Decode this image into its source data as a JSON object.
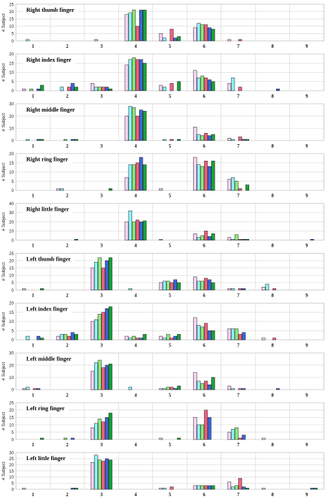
{
  "colors": [
    "#f6d2f2",
    "#8ef0f6",
    "#8ee87a",
    "#f0607f",
    "#3b66d6",
    "#16a233"
  ],
  "chart_data": [
    {
      "type": "bar",
      "title": "Right thumb finger",
      "ylabel": "# Subject",
      "categories": [
        "1",
        "2",
        "3",
        "4",
        "5",
        "6",
        "7",
        "8",
        "9"
      ],
      "ylim": [
        0,
        25
      ],
      "yticks": [
        0,
        5,
        10,
        15,
        20,
        25
      ],
      "values": [
        [
          0,
          1,
          0,
          0,
          0,
          0
        ],
        [
          0,
          0,
          0,
          0,
          0,
          0
        ],
        [
          0,
          1,
          0,
          0,
          0,
          0
        ],
        [
          18,
          19,
          21,
          10,
          21,
          21
        ],
        [
          5,
          2,
          0,
          8,
          2,
          3
        ],
        [
          9,
          12,
          11,
          11,
          9,
          8
        ],
        [
          1,
          0,
          0,
          1,
          0,
          0
        ],
        [
          0,
          0,
          0,
          0,
          0,
          0
        ],
        [
          0,
          0,
          0,
          0,
          0,
          0
        ]
      ]
    },
    {
      "type": "bar",
      "title": "Right index finger",
      "ylabel": "# Subject",
      "categories": [
        "1",
        "2",
        "3",
        "4",
        "5",
        "6",
        "7",
        "8",
        "9"
      ],
      "ylim": [
        0,
        20
      ],
      "yticks": [
        0,
        5,
        10,
        15,
        20
      ],
      "values": [
        [
          1,
          0,
          1,
          0,
          1,
          3
        ],
        [
          0,
          2,
          0,
          2,
          4,
          2
        ],
        [
          4,
          2,
          2,
          2,
          2,
          1
        ],
        [
          14,
          17,
          18,
          17,
          17,
          15
        ],
        [
          3,
          2,
          0,
          4,
          0,
          5
        ],
        [
          11,
          7,
          8,
          7,
          6,
          5
        ],
        [
          4,
          7,
          0,
          2,
          0,
          0
        ],
        [
          0,
          0,
          0,
          0,
          1,
          0
        ],
        [
          0,
          0,
          0,
          0,
          0,
          0
        ]
      ]
    },
    {
      "type": "bar",
      "title": "Right middle finger",
      "ylabel": "# Subject",
      "categories": [
        "1",
        "2",
        "3",
        "4",
        "5",
        "6",
        "7",
        "8",
        "9"
      ],
      "ylim": [
        0,
        30
      ],
      "yticks": [
        0,
        10,
        20,
        30
      ],
      "values": [
        [
          0,
          1,
          0,
          0,
          1,
          1
        ],
        [
          0,
          0,
          1,
          0,
          1,
          1
        ],
        [
          0,
          0,
          0,
          0,
          0,
          0
        ],
        [
          20,
          28,
          27,
          20,
          25,
          24
        ],
        [
          0,
          1,
          0,
          1,
          0,
          1
        ],
        [
          11,
          5,
          4,
          6,
          4,
          5
        ],
        [
          2,
          1,
          0,
          3,
          1,
          1
        ],
        [
          0,
          0,
          0,
          0,
          0,
          0
        ],
        [
          0,
          0,
          0,
          0,
          0,
          0
        ]
      ]
    },
    {
      "type": "bar",
      "title": "Right ring finger",
      "ylabel": "# Subject",
      "categories": [
        "1",
        "2",
        "3",
        "4",
        "5",
        "6",
        "7",
        "8",
        "9"
      ],
      "ylim": [
        0,
        20
      ],
      "yticks": [
        0,
        5,
        10,
        15,
        20
      ],
      "values": [
        [
          0,
          0,
          0,
          0,
          0,
          0
        ],
        [
          1,
          1,
          0,
          0,
          0,
          0
        ],
        [
          0,
          0,
          0,
          0,
          0,
          1
        ],
        [
          7,
          14,
          14,
          15,
          18,
          14
        ],
        [
          1,
          0,
          0,
          0,
          0,
          0
        ],
        [
          18,
          14,
          13,
          16,
          13,
          16
        ],
        [
          6,
          7,
          5,
          1,
          0,
          3
        ],
        [
          0,
          0,
          0,
          0,
          0,
          0
        ],
        [
          0,
          0,
          0,
          0,
          0,
          0
        ]
      ]
    },
    {
      "type": "bar",
      "title": "Right little finger",
      "ylabel": "# Subject",
      "categories": [
        "1",
        "2",
        "3",
        "4",
        "5",
        "6",
        "7",
        "8",
        "9"
      ],
      "ylim": [
        0,
        40
      ],
      "yticks": [
        0,
        10,
        20,
        30,
        40
      ],
      "values": [
        [
          0,
          0,
          0,
          0,
          0,
          0
        ],
        [
          0,
          0,
          0,
          0,
          0,
          1
        ],
        [
          0,
          0,
          0,
          0,
          0,
          0
        ],
        [
          20,
          32,
          20,
          22,
          20,
          21
        ],
        [
          1,
          0,
          0,
          0,
          0,
          0
        ],
        [
          7,
          3,
          5,
          10,
          4,
          7
        ],
        [
          3,
          1,
          6,
          1,
          1,
          1
        ],
        [
          0,
          0,
          0,
          0,
          0,
          0
        ],
        [
          0,
          0,
          0,
          0,
          1,
          0
        ]
      ]
    },
    {
      "type": "bar",
      "title": "Left thumb finger",
      "ylabel": "# Subject",
      "categories": [
        "1",
        "2",
        "3",
        "4",
        "5",
        "6",
        "7",
        "8",
        "9"
      ],
      "ylim": [
        0,
        25
      ],
      "yticks": [
        0,
        5,
        10,
        15,
        20,
        25
      ],
      "values": [
        [
          1,
          0,
          0,
          0,
          0,
          1
        ],
        [
          0,
          0,
          0,
          0,
          0,
          0
        ],
        [
          15,
          19,
          22,
          15,
          20,
          22
        ],
        [
          0,
          1,
          0,
          0,
          0,
          0
        ],
        [
          5,
          6,
          6,
          5,
          7,
          5
        ],
        [
          9,
          6,
          6,
          8,
          7,
          5
        ],
        [
          1,
          1,
          0,
          1,
          1,
          0
        ],
        [
          2,
          4,
          0,
          1,
          0,
          0
        ],
        [
          0,
          0,
          0,
          0,
          0,
          0
        ]
      ]
    },
    {
      "type": "bar",
      "title": "Left index finger",
      "ylabel": "# Subject",
      "categories": [
        "1",
        "2",
        "3",
        "4",
        "5",
        "6",
        "7",
        "8",
        "9"
      ],
      "ylim": [
        0,
        20
      ],
      "yticks": [
        0,
        5,
        10,
        15,
        20
      ],
      "values": [
        [
          0,
          2,
          0,
          0,
          2,
          1
        ],
        [
          2,
          3,
          3,
          2,
          4,
          3
        ],
        [
          10,
          11,
          14,
          15,
          17,
          18
        ],
        [
          2,
          1,
          2,
          1,
          1,
          3
        ],
        [
          2,
          1,
          3,
          1,
          2,
          3
        ],
        [
          12,
          8,
          7,
          9,
          5,
          5
        ],
        [
          6,
          6,
          6,
          3,
          4,
          0
        ],
        [
          1,
          0,
          0,
          1,
          0,
          0
        ],
        [
          0,
          0,
          0,
          0,
          0,
          0
        ]
      ]
    },
    {
      "type": "bar",
      "title": "Left middle finger",
      "ylabel": "# Subject",
      "categories": [
        "1",
        "2",
        "3",
        "4",
        "5",
        "6",
        "7",
        "8",
        "9"
      ],
      "ylim": [
        0,
        30
      ],
      "yticks": [
        0,
        10,
        20,
        30
      ],
      "values": [
        [
          1,
          2,
          0,
          1,
          1,
          0
        ],
        [
          0,
          0,
          0,
          0,
          0,
          0
        ],
        [
          15,
          22,
          24,
          18,
          20,
          21
        ],
        [
          0,
          2,
          0,
          0,
          0,
          0
        ],
        [
          1,
          1,
          2,
          2,
          1,
          3
        ],
        [
          14,
          7,
          5,
          7,
          4,
          10
        ],
        [
          3,
          1,
          0,
          1,
          1,
          0
        ],
        [
          0,
          0,
          0,
          0,
          1,
          0
        ],
        [
          0,
          0,
          0,
          0,
          0,
          0
        ]
      ]
    },
    {
      "type": "bar",
      "title": "Left ring finger",
      "ylabel": "# Subject",
      "categories": [
        "1",
        "2",
        "3",
        "4",
        "5",
        "6",
        "7",
        "8",
        "9"
      ],
      "ylim": [
        0,
        25
      ],
      "yticks": [
        0,
        5,
        10,
        15,
        20,
        25
      ],
      "values": [
        [
          0,
          0,
          0,
          0,
          0,
          1
        ],
        [
          0,
          0,
          1,
          0,
          1,
          0
        ],
        [
          8,
          11,
          14,
          12,
          15,
          18
        ],
        [
          0,
          0,
          0,
          0,
          0,
          0
        ],
        [
          1,
          0,
          0,
          0,
          0,
          1
        ],
        [
          15,
          10,
          10,
          20,
          15,
          0
        ],
        [
          5,
          7,
          8,
          1,
          3,
          0
        ],
        [
          1,
          0,
          0,
          0,
          0,
          0
        ],
        [
          0,
          0,
          0,
          0,
          0,
          0
        ]
      ]
    },
    {
      "type": "bar",
      "title": "Left little finger",
      "ylabel": "# Subject",
      "categories": [
        "1",
        "2",
        "3",
        "4",
        "5",
        "6",
        "7",
        "8",
        "9"
      ],
      "ylim": [
        0,
        30
      ],
      "yticks": [
        0,
        5,
        10,
        15,
        20,
        25,
        30
      ],
      "values": [
        [
          1,
          0,
          0,
          0,
          0,
          0
        ],
        [
          0,
          0,
          0,
          0,
          1,
          1
        ],
        [
          22,
          28,
          24,
          23,
          25,
          24
        ],
        [
          0,
          0,
          0,
          0,
          0,
          0
        ],
        [
          1,
          1,
          0,
          2,
          0,
          0
        ],
        [
          3,
          3,
          3,
          3,
          3,
          3
        ],
        [
          6,
          2,
          3,
          9,
          2,
          1
        ],
        [
          1,
          0,
          0,
          0,
          0,
          0
        ],
        [
          0,
          0,
          0,
          0,
          1,
          1
        ]
      ]
    }
  ]
}
